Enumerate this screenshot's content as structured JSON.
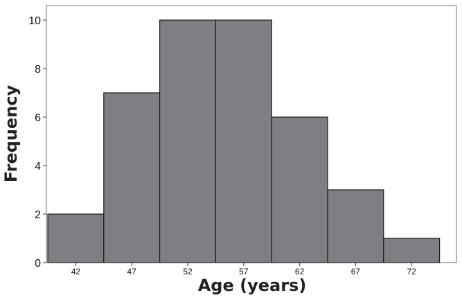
{
  "chart_data": {
    "type": "bar",
    "title": "",
    "xlabel": "Age (years)",
    "ylabel": "Frequency",
    "categories": [
      "42",
      "47",
      "52",
      "57",
      "62",
      "67",
      "72"
    ],
    "values": [
      2,
      7,
      10,
      10,
      6,
      3,
      1
    ],
    "ylim": [
      0,
      10.6
    ],
    "yticks": [
      0,
      2,
      4,
      6,
      8,
      10
    ],
    "grid": false,
    "legend": "none",
    "bar_color": "#7f7f83",
    "bar_edge_color": "#1a1a1a"
  }
}
